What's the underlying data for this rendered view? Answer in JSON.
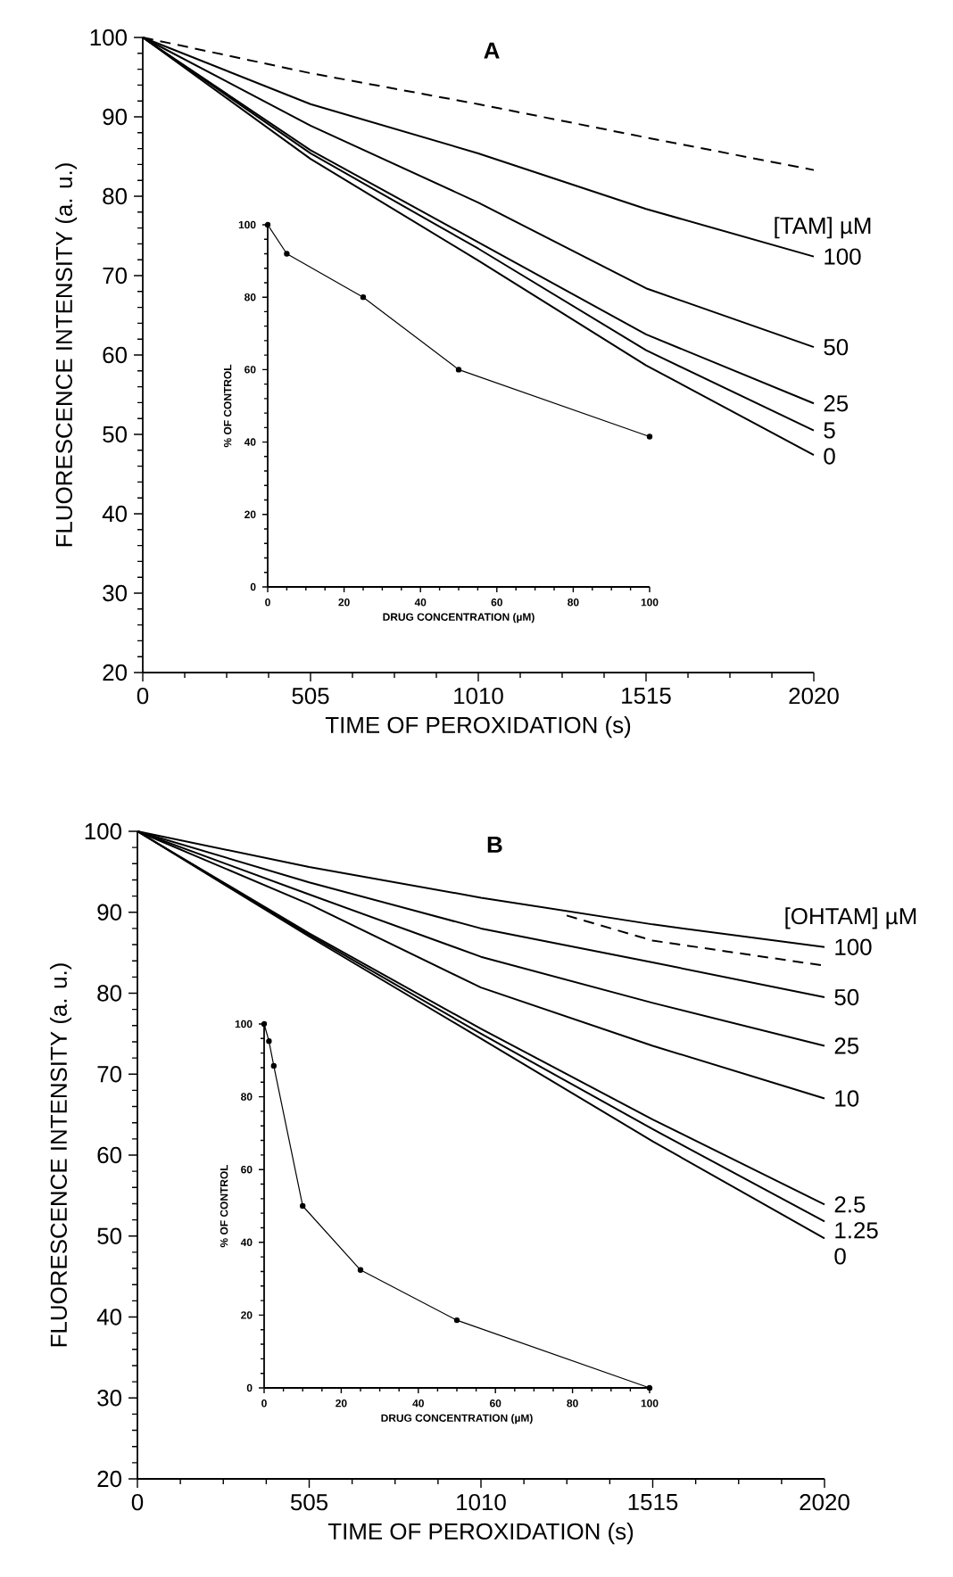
{
  "chart_data": [
    {
      "type": "line",
      "title": "A",
      "xlabel": "TIME OF PEROXIDATION (s)",
      "ylabel": "FLUORESCENCE INTENSITY (a. u.)",
      "legend_title": "[TAM] µM",
      "x": [
        0,
        505,
        1010,
        1515,
        2020
      ],
      "xlim": [
        0,
        2020
      ],
      "ylim": [
        20,
        100
      ],
      "xticks": [
        0,
        505,
        1010,
        1515,
        2020
      ],
      "yticks": [
        20,
        30,
        40,
        50,
        60,
        70,
        80,
        90,
        100
      ],
      "series": [
        {
          "color": "#000000",
          "line_style": "dashed",
          "values": [
            100,
            95.5,
            91.6,
            87.4,
            83.3
          ]
        },
        {
          "name": "100",
          "color": "#000000",
          "values": [
            100,
            91.6,
            85.4,
            78.4,
            72.4
          ]
        },
        {
          "name": "50",
          "color": "#000000",
          "values": [
            100,
            88.9,
            79.2,
            68.4,
            61
          ]
        },
        {
          "name": "25",
          "color": "#000000",
          "values": [
            100,
            85.8,
            74.2,
            62.6,
            53.9
          ]
        },
        {
          "name": "5",
          "color": "#000000",
          "values": [
            100,
            85.4,
            73.4,
            60.6,
            50.5
          ]
        },
        {
          "name": "0",
          "color": "#000000",
          "values": [
            100,
            84.7,
            71.9,
            58.7,
            47.4
          ]
        }
      ]
    },
    {
      "type": "line",
      "xlabel": "DRUG CONCENTRATION (µM)",
      "ylabel": "% OF CONTROL",
      "marker": "circle",
      "x": [
        0,
        5,
        25,
        50,
        100
      ],
      "xlim": [
        0,
        100
      ],
      "ylim": [
        0,
        100
      ],
      "xticks": [
        0,
        20,
        40,
        60,
        80,
        100
      ],
      "yticks": [
        0,
        20,
        40,
        60,
        80,
        100
      ],
      "series": [
        {
          "color": "#000000",
          "values": [
            100,
            92,
            80,
            60,
            41.5
          ]
        }
      ]
    },
    {
      "type": "line",
      "title": "B",
      "xlabel": "TIME OF PEROXIDATION (s)",
      "ylabel": "FLUORESCENCE INTENSITY (a. u.)",
      "legend_title": "[OHTAM] µM",
      "x": [
        0,
        505,
        1010,
        1515,
        2020
      ],
      "xlim": [
        0,
        2020
      ],
      "ylim": [
        20,
        100
      ],
      "xticks": [
        0,
        505,
        1010,
        1515,
        2020
      ],
      "yticks": [
        20,
        30,
        40,
        50,
        60,
        70,
        80,
        90,
        100
      ],
      "series": [
        {
          "color": "#000000",
          "line_style": "dashed",
          "x": [
            1262,
            1515,
            2020
          ],
          "values": [
            89.6,
            86.5,
            83.4
          ]
        },
        {
          "name": "100",
          "color": "#000000",
          "values": [
            100,
            95.6,
            91.8,
            88.5,
            85.7
          ]
        },
        {
          "name": "50",
          "color": "#000000",
          "values": [
            100,
            93.7,
            88.0,
            83.8,
            79.5
          ]
        },
        {
          "name": "25",
          "color": "#000000",
          "values": [
            100,
            92.2,
            84.5,
            78.8,
            73.5
          ]
        },
        {
          "name": "10",
          "color": "#000000",
          "values": [
            100,
            91.0,
            80.7,
            73.5,
            67.0
          ]
        },
        {
          "name": "2.5",
          "color": "#000000",
          "values": [
            100,
            87.4,
            75.6,
            64.4,
            53.9
          ]
        },
        {
          "name": "1.25",
          "color": "#000000",
          "values": [
            100,
            87.2,
            75.0,
            63.2,
            51.8
          ]
        },
        {
          "name": "0",
          "color": "#000000",
          "values": [
            100,
            87.0,
            74.4,
            61.7,
            49.7
          ]
        }
      ]
    },
    {
      "type": "line",
      "xlabel": "DRUG CONCENTRATION (µM)",
      "ylabel": "% OF CONTROL",
      "marker": "circle",
      "x": [
        0,
        1.25,
        2.5,
        10,
        25,
        50,
        100
      ],
      "xlim": [
        0,
        100
      ],
      "ylim": [
        0,
        100
      ],
      "xticks": [
        0,
        20,
        40,
        60,
        80,
        100
      ],
      "yticks": [
        0,
        20,
        40,
        60,
        80,
        100
      ],
      "series": [
        {
          "color": "#000000",
          "values": [
            100,
            95.3,
            88.5,
            50,
            32.4,
            18.6,
            0
          ]
        }
      ]
    }
  ]
}
